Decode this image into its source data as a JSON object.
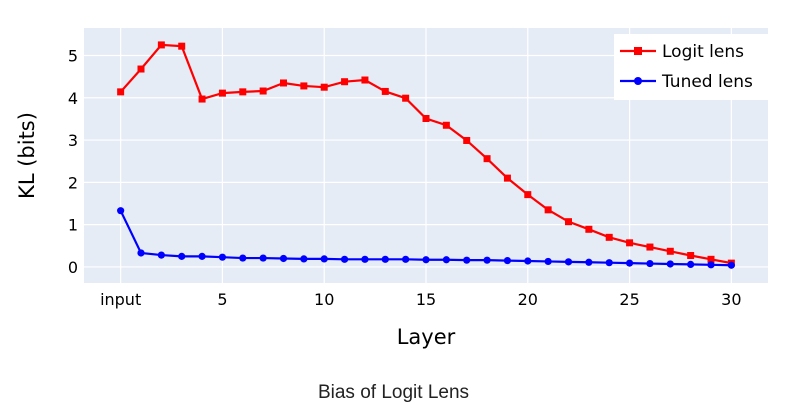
{
  "chart_data": {
    "type": "line",
    "xlabel": "Layer",
    "ylabel": "KL (bits)",
    "xlim": [
      -1.8,
      31.8
    ],
    "ylim": [
      -0.38,
      5.65
    ],
    "x_ticks": [
      {
        "value": 0,
        "label": "input"
      },
      {
        "value": 5,
        "label": "5"
      },
      {
        "value": 10,
        "label": "10"
      },
      {
        "value": 15,
        "label": "15"
      },
      {
        "value": 20,
        "label": "20"
      },
      {
        "value": 25,
        "label": "25"
      },
      {
        "value": 30,
        "label": "30"
      }
    ],
    "y_ticks": [
      0,
      1,
      2,
      3,
      4,
      5
    ],
    "grid": true,
    "legend_position": "top-right",
    "x": [
      0,
      1,
      2,
      3,
      4,
      5,
      6,
      7,
      8,
      9,
      10,
      11,
      12,
      13,
      14,
      15,
      16,
      17,
      18,
      19,
      20,
      21,
      22,
      23,
      24,
      25,
      26,
      27,
      28,
      29,
      30
    ],
    "series": [
      {
        "name": "Logit lens",
        "color": "#ff0000",
        "marker": "square",
        "values": [
          4.14,
          4.68,
          5.25,
          5.22,
          3.97,
          4.11,
          4.14,
          4.16,
          4.35,
          4.28,
          4.25,
          4.38,
          4.42,
          4.15,
          3.99,
          3.51,
          3.35,
          2.99,
          2.56,
          2.1,
          1.71,
          1.35,
          1.07,
          0.89,
          0.7,
          0.57,
          0.47,
          0.37,
          0.27,
          0.18,
          0.09
        ]
      },
      {
        "name": "Tuned lens",
        "color": "#0000ff",
        "marker": "circle",
        "values": [
          1.33,
          0.33,
          0.28,
          0.25,
          0.25,
          0.23,
          0.21,
          0.21,
          0.2,
          0.19,
          0.19,
          0.18,
          0.18,
          0.18,
          0.18,
          0.17,
          0.17,
          0.16,
          0.16,
          0.15,
          0.14,
          0.13,
          0.12,
          0.11,
          0.1,
          0.09,
          0.08,
          0.07,
          0.06,
          0.05,
          0.04
        ]
      }
    ]
  },
  "caption": "Bias of Logit Lens"
}
